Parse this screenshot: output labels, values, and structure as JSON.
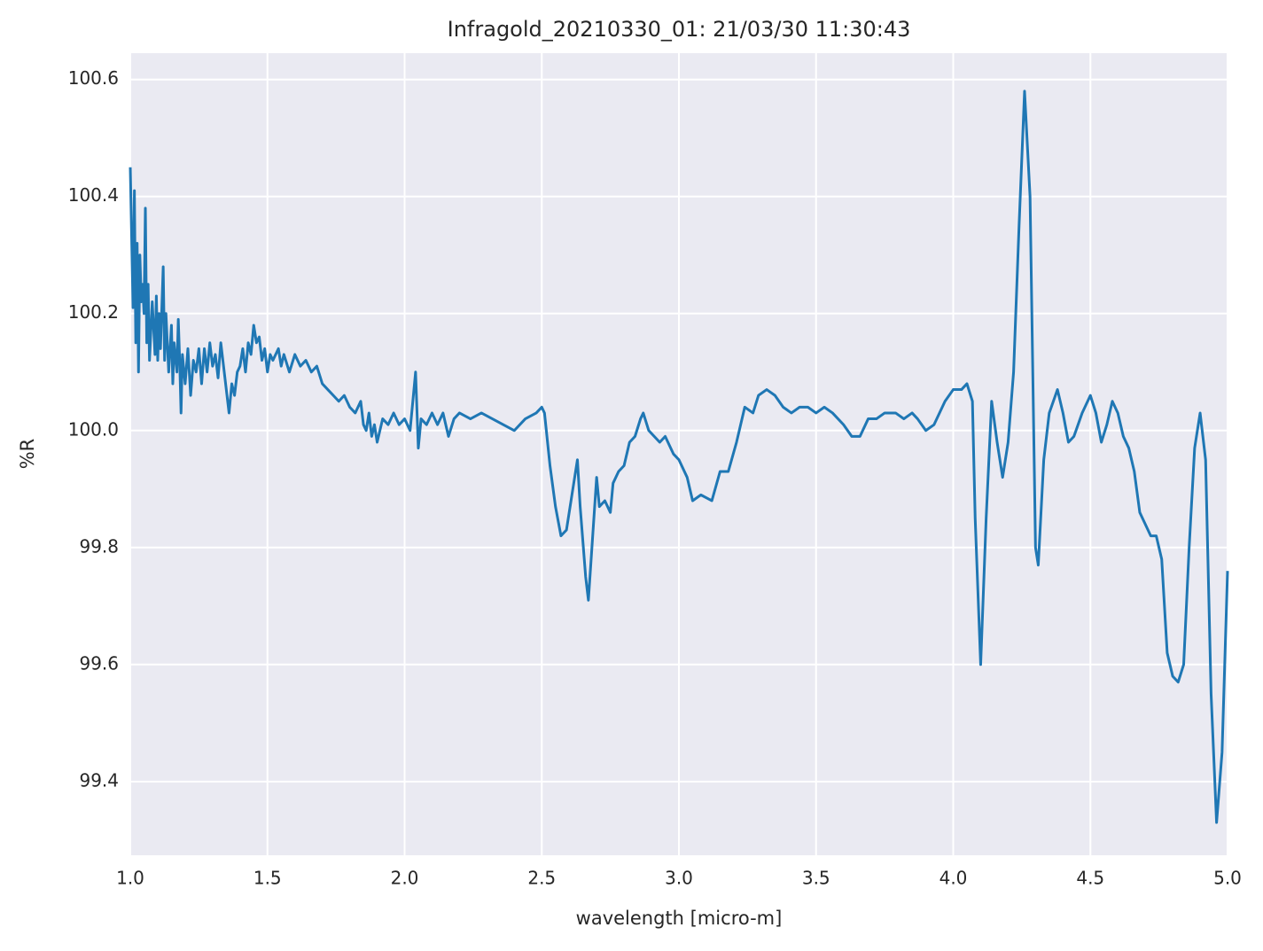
{
  "chart_data": {
    "type": "line",
    "title": "Infragold_20210330_01:  21/03/30 11:30:43",
    "x_label": "wavelength [micro-m]",
    "y_label": "%R",
    "color": "#1f77b4",
    "grid": true,
    "xlim": [
      1.0,
      5.0
    ],
    "ylim": [
      99.274,
      100.645
    ],
    "xticks": [
      {
        "value": 1,
        "label": "1.0"
      },
      1.5,
      {
        "value": 2,
        "label": "2.0"
      },
      2.5,
      {
        "value": 3,
        "label": "3.0"
      },
      3.5,
      {
        "value": 4,
        "label": "4.0"
      },
      4.5,
      {
        "value": 5,
        "label": "5.0"
      }
    ],
    "yticks": [
      99.4,
      99.6,
      99.8,
      {
        "value": 100,
        "label": "100.0"
      },
      100.2,
      100.4,
      100.6
    ],
    "x": [
      1.0,
      1.01,
      1.015,
      1.02,
      1.025,
      1.03,
      1.035,
      1.04,
      1.045,
      1.05,
      1.055,
      1.06,
      1.065,
      1.07,
      1.08,
      1.09,
      1.095,
      1.1,
      1.105,
      1.11,
      1.12,
      1.125,
      1.13,
      1.14,
      1.15,
      1.155,
      1.16,
      1.17,
      1.175,
      1.18,
      1.185,
      1.19,
      1.2,
      1.21,
      1.22,
      1.23,
      1.24,
      1.25,
      1.26,
      1.27,
      1.28,
      1.29,
      1.3,
      1.31,
      1.32,
      1.33,
      1.34,
      1.35,
      1.36,
      1.37,
      1.38,
      1.39,
      1.4,
      1.41,
      1.42,
      1.43,
      1.44,
      1.45,
      1.46,
      1.47,
      1.48,
      1.49,
      1.5,
      1.51,
      1.52,
      1.54,
      1.55,
      1.56,
      1.58,
      1.6,
      1.62,
      1.64,
      1.66,
      1.68,
      1.7,
      1.72,
      1.74,
      1.76,
      1.78,
      1.8,
      1.82,
      1.84,
      1.85,
      1.86,
      1.87,
      1.88,
      1.89,
      1.9,
      1.92,
      1.94,
      1.96,
      1.98,
      2.0,
      2.02,
      2.04,
      2.05,
      2.06,
      2.08,
      2.1,
      2.12,
      2.14,
      2.16,
      2.18,
      2.2,
      2.24,
      2.28,
      2.32,
      2.36,
      2.4,
      2.44,
      2.48,
      2.5,
      2.51,
      2.53,
      2.55,
      2.57,
      2.59,
      2.61,
      2.63,
      2.64,
      2.66,
      2.67,
      2.69,
      2.7,
      2.71,
      2.73,
      2.75,
      2.76,
      2.78,
      2.8,
      2.82,
      2.84,
      2.86,
      2.87,
      2.89,
      2.91,
      2.93,
      2.95,
      2.98,
      3.0,
      3.03,
      3.05,
      3.08,
      3.12,
      3.15,
      3.18,
      3.21,
      3.24,
      3.27,
      3.29,
      3.32,
      3.35,
      3.38,
      3.41,
      3.44,
      3.47,
      3.5,
      3.53,
      3.56,
      3.6,
      3.63,
      3.66,
      3.69,
      3.72,
      3.75,
      3.79,
      3.82,
      3.85,
      3.87,
      3.9,
      3.93,
      3.97,
      4.0,
      4.03,
      4.05,
      4.07,
      4.08,
      4.1,
      4.12,
      4.14,
      4.16,
      4.18,
      4.2,
      4.22,
      4.24,
      4.26,
      4.28,
      4.3,
      4.31,
      4.33,
      4.35,
      4.38,
      4.4,
      4.42,
      4.44,
      4.47,
      4.5,
      4.52,
      4.54,
      4.56,
      4.58,
      4.6,
      4.62,
      4.64,
      4.66,
      4.68,
      4.7,
      4.72,
      4.74,
      4.76,
      4.78,
      4.8,
      4.82,
      4.84,
      4.86,
      4.88,
      4.9,
      4.92,
      4.94,
      4.96,
      4.98,
      5.0
    ],
    "values": [
      100.45,
      100.21,
      100.41,
      100.15,
      100.32,
      100.1,
      100.3,
      100.22,
      100.25,
      100.2,
      100.38,
      100.15,
      100.25,
      100.12,
      100.22,
      100.13,
      100.23,
      100.12,
      100.2,
      100.14,
      100.28,
      100.12,
      100.2,
      100.1,
      100.18,
      100.08,
      100.15,
      100.1,
      100.19,
      100.12,
      100.03,
      100.13,
      100.08,
      100.14,
      100.06,
      100.12,
      100.1,
      100.14,
      100.08,
      100.14,
      100.1,
      100.15,
      100.11,
      100.13,
      100.09,
      100.15,
      100.11,
      100.07,
      100.03,
      100.08,
      100.06,
      100.1,
      100.11,
      100.14,
      100.1,
      100.15,
      100.13,
      100.18,
      100.15,
      100.16,
      100.12,
      100.14,
      100.1,
      100.13,
      100.12,
      100.14,
      100.11,
      100.13,
      100.1,
      100.13,
      100.11,
      100.12,
      100.1,
      100.11,
      100.08,
      100.07,
      100.06,
      100.05,
      100.06,
      100.04,
      100.03,
      100.05,
      100.01,
      100.0,
      100.03,
      99.99,
      100.01,
      99.98,
      100.02,
      100.01,
      100.03,
      100.01,
      100.02,
      100.0,
      100.1,
      99.97,
      100.02,
      100.01,
      100.03,
      100.01,
      100.03,
      99.99,
      100.02,
      100.03,
      100.02,
      100.03,
      100.02,
      100.01,
      100.0,
      100.02,
      100.03,
      100.04,
      100.03,
      99.94,
      99.87,
      99.82,
      99.83,
      99.89,
      99.95,
      99.87,
      99.75,
      99.71,
      99.85,
      99.92,
      99.87,
      99.88,
      99.86,
      99.91,
      99.93,
      99.94,
      99.98,
      99.99,
      100.02,
      100.03,
      100.0,
      99.99,
      99.98,
      99.99,
      99.96,
      99.95,
      99.92,
      99.88,
      99.89,
      99.88,
      99.93,
      99.93,
      99.98,
      100.04,
      100.03,
      100.06,
      100.07,
      100.06,
      100.04,
      100.03,
      100.04,
      100.04,
      100.03,
      100.04,
      100.03,
      100.01,
      99.99,
      99.99,
      100.02,
      100.02,
      100.03,
      100.03,
      100.02,
      100.03,
      100.02,
      100.0,
      100.01,
      100.05,
      100.07,
      100.07,
      100.08,
      100.05,
      99.85,
      99.6,
      99.85,
      100.05,
      99.98,
      99.92,
      99.98,
      100.1,
      100.35,
      100.58,
      100.4,
      99.8,
      99.77,
      99.95,
      100.03,
      100.07,
      100.03,
      99.98,
      99.99,
      100.03,
      100.06,
      100.03,
      99.98,
      100.01,
      100.05,
      100.03,
      99.99,
      99.97,
      99.93,
      99.86,
      99.84,
      99.82,
      99.82,
      99.78,
      99.62,
      99.58,
      99.57,
      99.6,
      99.8,
      99.97,
      100.03,
      99.95,
      99.55,
      99.33,
      99.45,
      99.76
    ]
  }
}
